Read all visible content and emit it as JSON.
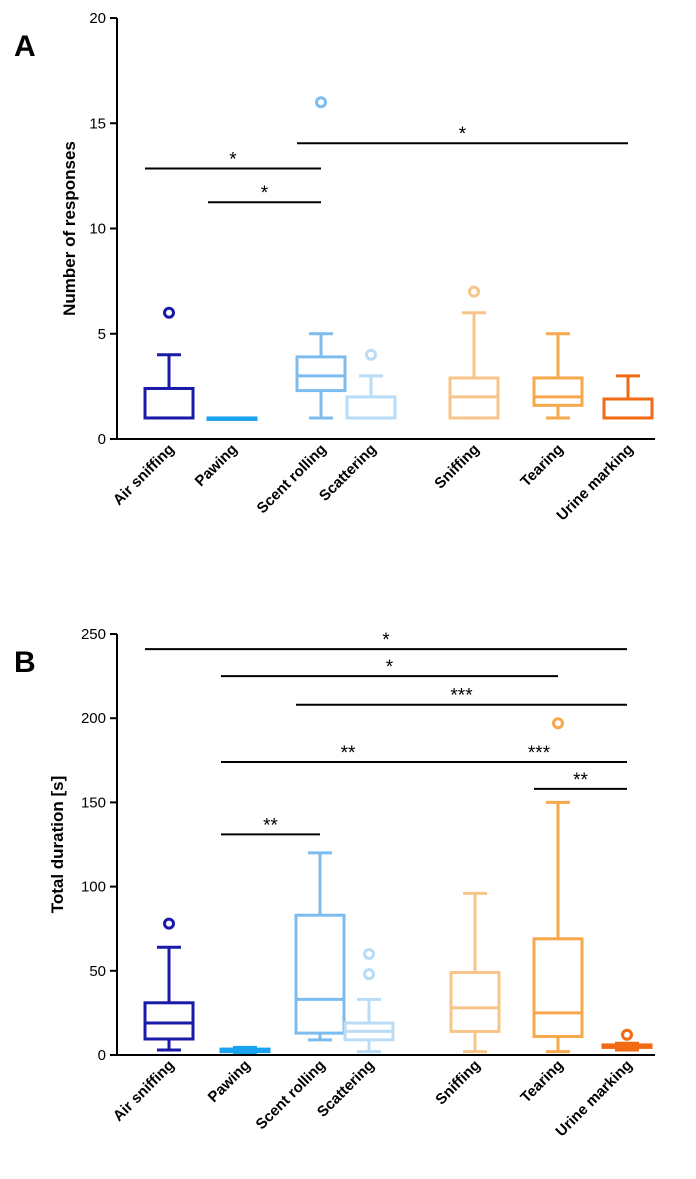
{
  "chart_data": [
    {
      "panel": "A",
      "type": "boxplot",
      "ylabel": "Number of responses",
      "ylim": [
        0,
        20
      ],
      "yticks": [
        0,
        5,
        10,
        15,
        20
      ],
      "categories": [
        "Air sniffing",
        "Pawing",
        "Scent rolling",
        "Scattering",
        "Sniffing",
        "Tearing",
        "Urine marking"
      ],
      "colors": [
        "#1a1aa8",
        "#1aa3f0",
        "#7dbcef",
        "#b9dcf7",
        "#f7c48a",
        "#f7a84a",
        "#f26b14"
      ],
      "boxes": [
        {
          "min": 1,
          "q1": 1,
          "median": 1,
          "q3": 2.4,
          "max": 4,
          "outliers": [
            6
          ]
        },
        {
          "min": 1,
          "q1": 1,
          "median": 1,
          "q3": 1,
          "max": 1,
          "outliers": []
        },
        {
          "min": 1,
          "q1": 2.3,
          "median": 3,
          "q3": 3.9,
          "max": 5,
          "outliers": [
            16
          ]
        },
        {
          "min": 1,
          "q1": 1,
          "median": 1,
          "q3": 2,
          "max": 3,
          "outliers": [
            4
          ]
        },
        {
          "min": 1,
          "q1": 1,
          "median": 2,
          "q3": 2.9,
          "max": 6,
          "outliers": [
            7
          ]
        },
        {
          "min": 1,
          "q1": 1.6,
          "median": 2,
          "q3": 2.9,
          "max": 5,
          "outliers": []
        },
        {
          "min": 1,
          "q1": 1,
          "median": 1,
          "q3": 1.9,
          "max": 3,
          "outliers": []
        }
      ],
      "significance": [
        {
          "from": 0,
          "to": 2,
          "level": 12.85,
          "label": "*"
        },
        {
          "from": 1,
          "to": 2,
          "level": 11.25,
          "label": "*"
        },
        {
          "from": 2,
          "to": 6,
          "level": 14.05,
          "label": "*"
        }
      ]
    },
    {
      "panel": "B",
      "type": "boxplot",
      "ylabel": "Total duration [s]",
      "ylim": [
        0,
        250
      ],
      "yticks": [
        0,
        50,
        100,
        150,
        200,
        250
      ],
      "categories": [
        "Air sniffing",
        "Pawing",
        "Scent rolling",
        "Scattering",
        "Sniffing",
        "Tearing",
        "Urine marking"
      ],
      "colors": [
        "#1a1aa8",
        "#1aa3f0",
        "#7dbcef",
        "#b9dcf7",
        "#f7c48a",
        "#f7a84a",
        "#f26b14"
      ],
      "boxes": [
        {
          "min": 3,
          "q1": 9.5,
          "median": 19,
          "q3": 31,
          "max": 64,
          "outliers": [
            78
          ]
        },
        {
          "min": 1.5,
          "q1": 2,
          "median": 3,
          "q3": 3.5,
          "max": 4.5,
          "outliers": []
        },
        {
          "min": 9,
          "q1": 13,
          "median": 33,
          "q3": 83,
          "max": 120,
          "outliers": []
        },
        {
          "min": 2,
          "q1": 9,
          "median": 14,
          "q3": 19,
          "max": 33,
          "outliers": [
            48,
            60
          ]
        },
        {
          "min": 2,
          "q1": 14,
          "median": 28,
          "q3": 49,
          "max": 96,
          "outliers": []
        },
        {
          "min": 2,
          "q1": 11,
          "median": 25,
          "q3": 69,
          "max": 150,
          "outliers": [
            197
          ]
        },
        {
          "min": 3,
          "q1": 4.5,
          "median": 5,
          "q3": 6,
          "max": 7,
          "outliers": [
            12
          ]
        }
      ],
      "significance": [
        {
          "from": 0,
          "to": 6,
          "level": 241,
          "label": "*"
        },
        {
          "from": 1,
          "to": 5,
          "level": 225,
          "label": "*"
        },
        {
          "from": 2,
          "to": 6,
          "level": 208,
          "label": "***"
        },
        {
          "from": 1,
          "to": 4,
          "level": 174,
          "label": "**"
        },
        {
          "from": 4,
          "to": 6,
          "level": 174,
          "label": "***"
        },
        {
          "from": 1,
          "to": 2,
          "level": 131,
          "label": "**"
        },
        {
          "from": 5,
          "to": 6,
          "level": 158,
          "label": "**"
        }
      ]
    }
  ]
}
